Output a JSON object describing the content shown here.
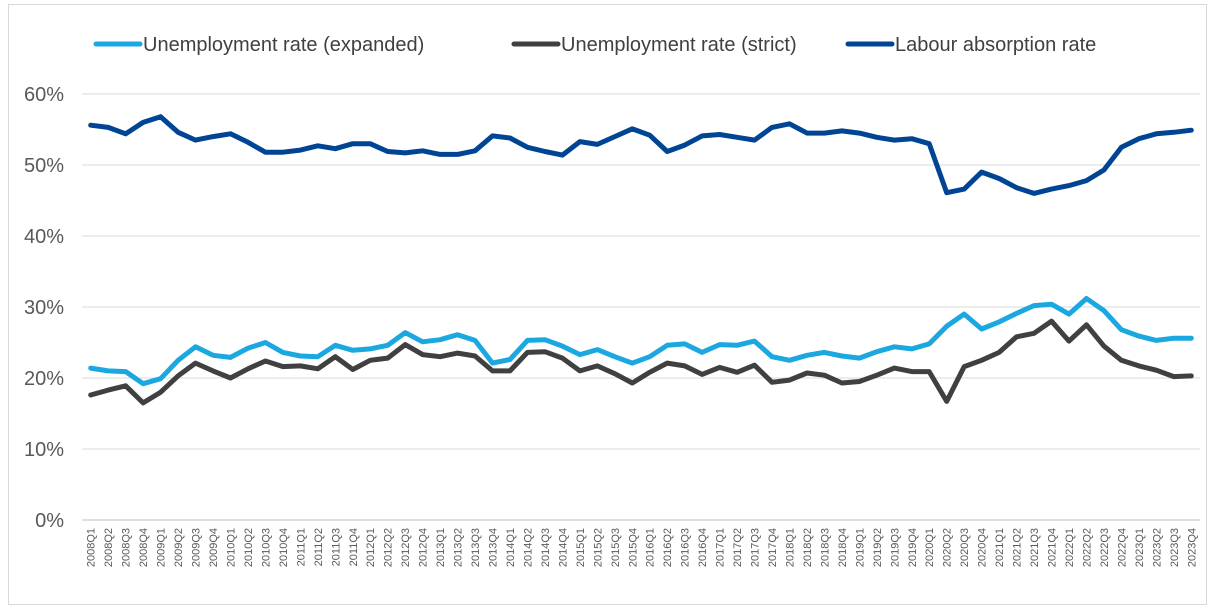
{
  "chart_data": {
    "type": "line",
    "title": "",
    "xlabel": "",
    "ylabel": "",
    "ylim": [
      0,
      60
    ],
    "y_tick_labels": [
      "0%",
      "10%",
      "20%",
      "30%",
      "40%",
      "50%",
      "60%"
    ],
    "y_tick_values": [
      0,
      10,
      20,
      30,
      40,
      50,
      60
    ],
    "grid": true,
    "legend_position": "top",
    "categories": [
      "2008Q1",
      "2008Q2",
      "2008Q3",
      "2008Q4",
      "2009Q1",
      "2009Q2",
      "2009Q3",
      "2009Q4",
      "2010Q1",
      "2010Q2",
      "2010Q3",
      "2010Q4",
      "2011Q1",
      "2011Q2",
      "2011Q3",
      "2011Q4",
      "2012Q1",
      "2012Q2",
      "2012Q3",
      "2012Q4",
      "2013Q1",
      "2013Q2",
      "2013Q3",
      "2013Q4",
      "2014Q1",
      "2014Q2",
      "2014Q3",
      "2014Q4",
      "2015Q1",
      "2015Q2",
      "2015Q3",
      "2015Q4",
      "2016Q1",
      "2016Q2",
      "2016Q3",
      "2016Q4",
      "2017Q1",
      "2017Q2",
      "2017Q3",
      "2017Q4",
      "2018Q1",
      "2018Q2",
      "2018Q3",
      "2018Q4",
      "2019Q1",
      "2019Q2",
      "2019Q3",
      "2019Q4",
      "2020Q1",
      "2020Q2",
      "2020Q3",
      "2020Q4",
      "2021Q1",
      "2021Q2",
      "2021Q3",
      "2021Q4",
      "2022Q1",
      "2022Q2",
      "2022Q3",
      "2022Q4",
      "2023Q1",
      "2023Q2",
      "2023Q3",
      "2023Q4"
    ],
    "series": [
      {
        "name": "Unemployment rate (expanded)",
        "color": "#1BA8E0",
        "values": [
          21.4,
          21.0,
          20.9,
          19.2,
          19.9,
          22.5,
          24.4,
          23.2,
          22.9,
          24.2,
          25.0,
          23.6,
          23.1,
          23.0,
          24.6,
          23.9,
          24.1,
          24.6,
          26.4,
          25.1,
          25.4,
          26.1,
          25.3,
          22.1,
          22.6,
          25.3,
          25.4,
          24.5,
          23.3,
          24.0,
          23.0,
          22.1,
          23.0,
          24.6,
          24.8,
          23.6,
          24.7,
          24.6,
          25.2,
          23.0,
          22.5,
          23.2,
          23.6,
          23.1,
          22.8,
          23.7,
          24.4,
          24.1,
          24.8,
          27.3,
          29.0,
          26.9,
          27.9,
          29.1,
          30.2,
          30.4,
          29.0,
          31.2,
          29.5,
          26.8,
          25.9,
          25.3,
          25.6,
          25.6
        ]
      },
      {
        "name": "Unemployment rate (strict)",
        "color": "#404040",
        "values": [
          17.6,
          18.3,
          18.9,
          16.5,
          18.0,
          20.3,
          22.1,
          21.0,
          20.0,
          21.3,
          22.4,
          21.6,
          21.7,
          21.3,
          23.0,
          21.2,
          22.5,
          22.8,
          24.7,
          23.3,
          23.0,
          23.5,
          23.1,
          21.0,
          21.0,
          23.6,
          23.7,
          22.8,
          21.0,
          21.7,
          20.6,
          19.3,
          20.8,
          22.1,
          21.7,
          20.5,
          21.5,
          20.8,
          21.8,
          19.4,
          19.7,
          20.7,
          20.4,
          19.3,
          19.5,
          20.4,
          21.4,
          20.9,
          20.9,
          16.7,
          21.6,
          22.5,
          23.6,
          25.8,
          26.3,
          28.0,
          25.2,
          27.5,
          24.5,
          22.5,
          21.7,
          21.1,
          20.2,
          20.3
        ]
      },
      {
        "name": "Labour absorption rate",
        "color": "#004494",
        "values": [
          55.6,
          55.3,
          54.4,
          56.0,
          56.8,
          54.6,
          53.5,
          54.0,
          54.4,
          53.2,
          51.8,
          51.8,
          52.1,
          52.7,
          52.3,
          53.0,
          53.0,
          51.9,
          51.7,
          52.0,
          51.5,
          51.5,
          52.0,
          54.1,
          53.8,
          52.5,
          51.9,
          51.4,
          53.3,
          52.9,
          54.0,
          55.1,
          54.2,
          51.9,
          52.8,
          54.1,
          54.3,
          53.9,
          53.5,
          55.3,
          55.8,
          54.5,
          54.5,
          54.8,
          54.5,
          53.9,
          53.5,
          53.7,
          53.0,
          46.1,
          46.6,
          49.0,
          48.1,
          46.8,
          46.0,
          46.6,
          47.1,
          47.8,
          49.3,
          52.5,
          53.7,
          54.4,
          54.6,
          54.9
        ]
      }
    ]
  }
}
